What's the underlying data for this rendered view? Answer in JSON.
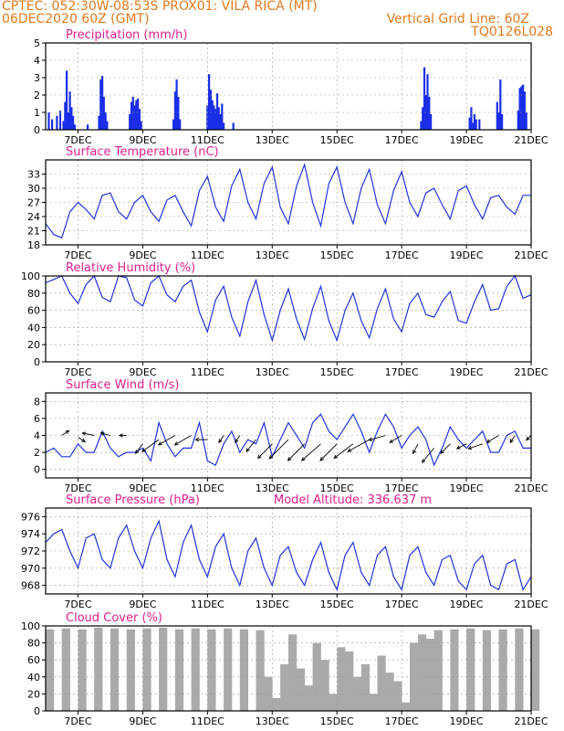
{
  "header": {
    "line1_left": "CPTEC:  052:30W-08:53S  PROX01: VILA RICA (MT)",
    "line2_left": "06DEC2020 60Z (GMT)",
    "line2_right": "Vertical Grid Line: 60Z",
    "line3_right": "TQ0126L028"
  },
  "colors": {
    "header": "#e07a1f",
    "title": "#e0208c",
    "line": "#2233dd",
    "bar": "#1a2ee8",
    "cloud": "#aaaaaa",
    "grid": "#999999"
  },
  "x_axis": {
    "unit": "day of December 2020 (from 06DEC 00Z)",
    "range": [
      6.0,
      21.0
    ],
    "ticks": [
      7,
      9,
      11,
      13,
      15,
      17,
      19,
      21
    ],
    "tick_labels": [
      "7DEC",
      "9DEC",
      "11DEC",
      "13DEC",
      "15DEC",
      "17DEC",
      "19DEC",
      "21DEC"
    ]
  },
  "chart_data": [
    {
      "type": "bar",
      "title": "Precipitation (mm/h)",
      "ylim": [
        0,
        5
      ],
      "yticks": [
        0,
        1,
        2,
        3,
        4,
        5
      ],
      "x": [
        6.1,
        6.2,
        6.35,
        6.45,
        6.55,
        6.6,
        6.65,
        6.7,
        6.75,
        6.8,
        6.85,
        6.9,
        7.3,
        7.65,
        7.7,
        7.75,
        7.8,
        7.85,
        7.9,
        8.6,
        8.65,
        8.7,
        8.75,
        8.8,
        8.85,
        8.9,
        8.95,
        9.95,
        10.0,
        10.05,
        10.1,
        10.15,
        11.0,
        11.05,
        11.1,
        11.15,
        11.2,
        11.25,
        11.3,
        11.35,
        11.4,
        11.45,
        11.5,
        11.8,
        17.6,
        17.65,
        17.7,
        17.75,
        17.8,
        17.85,
        17.9,
        19.1,
        19.15,
        19.2,
        19.25,
        19.3,
        19.4,
        19.95,
        20.0,
        20.05,
        20.1,
        20.6,
        20.65,
        20.7,
        20.75,
        20.8,
        20.85
      ],
      "values": [
        1.0,
        0.6,
        0.8,
        1.1,
        0.5,
        1.6,
        3.4,
        1.0,
        2.2,
        1.3,
        0.8,
        0.3,
        0.3,
        0.8,
        2.9,
        3.1,
        1.9,
        1.0,
        0.5,
        0.9,
        1.6,
        1.9,
        1.4,
        1.7,
        1.8,
        1.2,
        0.5,
        0.6,
        2.2,
        2.9,
        1.9,
        0.6,
        1.4,
        3.2,
        2.3,
        1.7,
        1.4,
        1.2,
        2.1,
        1.3,
        0.9,
        1.5,
        0.4,
        0.4,
        0.5,
        1.3,
        3.6,
        2.0,
        3.2,
        1.9,
        0.9,
        0.7,
        1.3,
        0.4,
        0.9,
        0.6,
        0.6,
        1.6,
        1.0,
        2.9,
        0.9,
        1.1,
        2.4,
        2.5,
        2.6,
        2.2,
        1.0
      ]
    },
    {
      "type": "line",
      "title": "Surface Temperature (nC)",
      "ylim": [
        18,
        36
      ],
      "yticks": [
        18,
        21,
        24,
        27,
        30,
        33
      ],
      "x": [
        6.0,
        6.25,
        6.5,
        6.75,
        7.0,
        7.25,
        7.5,
        7.75,
        8.0,
        8.25,
        8.5,
        8.75,
        9.0,
        9.25,
        9.5,
        9.75,
        10.0,
        10.25,
        10.5,
        10.75,
        11.0,
        11.25,
        11.5,
        11.75,
        12.0,
        12.25,
        12.5,
        12.75,
        13.0,
        13.25,
        13.5,
        13.75,
        14.0,
        14.25,
        14.5,
        14.75,
        15.0,
        15.25,
        15.5,
        15.75,
        16.0,
        16.25,
        16.5,
        16.75,
        17.0,
        17.25,
        17.5,
        17.75,
        18.0,
        18.25,
        18.5,
        18.75,
        19.0,
        19.25,
        19.5,
        19.75,
        20.0,
        20.25,
        20.5,
        20.75,
        21.0
      ],
      "values": [
        22.5,
        20.2,
        19.5,
        25.0,
        27.0,
        25.5,
        23.5,
        28.5,
        29.0,
        25.0,
        23.5,
        27.0,
        28.5,
        25.0,
        23.0,
        27.5,
        28.5,
        25.0,
        22.0,
        29.5,
        32.5,
        26.0,
        23.0,
        30.5,
        34.0,
        27.0,
        23.5,
        31.0,
        34.5,
        26.0,
        22.5,
        30.5,
        35.0,
        27.0,
        22.0,
        31.0,
        34.5,
        27.0,
        22.5,
        30.0,
        34.0,
        26.5,
        22.5,
        29.5,
        33.5,
        27.0,
        24.0,
        29.0,
        30.0,
        26.5,
        23.5,
        29.5,
        30.5,
        26.5,
        23.5,
        28.0,
        28.5,
        26.0,
        24.5,
        28.5,
        28.5
      ]
    },
    {
      "type": "line",
      "title": "Relative Humidity (%)",
      "ylim": [
        0,
        100
      ],
      "yticks": [
        0,
        20,
        40,
        60,
        80,
        100
      ],
      "x": [
        6.0,
        6.25,
        6.5,
        6.75,
        7.0,
        7.25,
        7.5,
        7.75,
        8.0,
        8.25,
        8.5,
        8.75,
        9.0,
        9.25,
        9.5,
        9.75,
        10.0,
        10.25,
        10.5,
        10.75,
        11.0,
        11.25,
        11.5,
        11.75,
        12.0,
        12.25,
        12.5,
        12.75,
        13.0,
        13.25,
        13.5,
        13.75,
        14.0,
        14.25,
        14.5,
        14.75,
        15.0,
        15.25,
        15.5,
        15.75,
        16.0,
        16.25,
        16.5,
        16.75,
        17.0,
        17.25,
        17.5,
        17.75,
        18.0,
        18.25,
        18.5,
        18.75,
        19.0,
        19.25,
        19.5,
        19.75,
        20.0,
        20.25,
        20.5,
        20.75,
        21.0
      ],
      "values": [
        92,
        96,
        100,
        80,
        68,
        90,
        100,
        75,
        70,
        100,
        98,
        72,
        65,
        92,
        100,
        78,
        70,
        88,
        95,
        58,
        35,
        72,
        88,
        52,
        30,
        70,
        95,
        55,
        25,
        60,
        85,
        50,
        26,
        62,
        88,
        48,
        25,
        60,
        80,
        48,
        28,
        62,
        85,
        50,
        35,
        68,
        80,
        55,
        52,
        70,
        82,
        48,
        45,
        70,
        90,
        60,
        62,
        88,
        100,
        74,
        78
      ]
    },
    {
      "type": "line",
      "title": "Surface Wind (m/s)",
      "ylim": [
        -1,
        9
      ],
      "yticks": [
        0,
        2,
        4,
        6,
        8
      ],
      "x": [
        6.0,
        6.25,
        6.5,
        6.75,
        7.0,
        7.25,
        7.5,
        7.75,
        8.0,
        8.25,
        8.5,
        8.75,
        9.0,
        9.25,
        9.5,
        9.75,
        10.0,
        10.25,
        10.5,
        10.75,
        11.0,
        11.25,
        11.5,
        11.75,
        12.0,
        12.25,
        12.5,
        12.75,
        13.0,
        13.25,
        13.5,
        13.75,
        14.0,
        14.25,
        14.5,
        14.75,
        15.0,
        15.25,
        15.5,
        15.75,
        16.0,
        16.25,
        16.5,
        16.75,
        17.0,
        17.25,
        17.5,
        17.75,
        18.0,
        18.25,
        18.5,
        18.75,
        19.0,
        19.25,
        19.5,
        19.75,
        20.0,
        20.25,
        20.5,
        20.75,
        21.0
      ],
      "values": [
        2.0,
        2.5,
        1.5,
        1.5,
        3.0,
        2.0,
        2.0,
        4.5,
        2.5,
        1.5,
        2.0,
        2.0,
        2.5,
        1.0,
        5.5,
        3.0,
        1.5,
        2.5,
        2.5,
        5.5,
        1.0,
        0.5,
        3.0,
        4.5,
        2.0,
        3.5,
        3.0,
        5.5,
        1.5,
        3.5,
        5.5,
        4.0,
        2.5,
        5.5,
        6.5,
        4.5,
        3.5,
        5.0,
        6.5,
        4.5,
        2.0,
        4.5,
        6.5,
        5.0,
        2.5,
        4.0,
        5.0,
        3.5,
        0.5,
        2.5,
        5.0,
        3.5,
        2.5,
        3.5,
        4.5,
        2.0,
        2.0,
        4.0,
        4.5,
        2.5,
        2.5
      ],
      "arrows": {
        "x": [
          6.5,
          7.0,
          7.5,
          8.0,
          8.5,
          9.0,
          9.5,
          10.0,
          10.5,
          11.0,
          11.5,
          12.0,
          12.5,
          13.0,
          13.5,
          14.0,
          14.5,
          15.0,
          15.5,
          16.0,
          16.5,
          17.0,
          17.5,
          18.0,
          18.5,
          19.0,
          19.5,
          20.0,
          20.5,
          21.0
        ],
        "y": [
          4.0,
          3.8,
          4.0,
          4.0,
          4.0,
          3.0,
          3.5,
          4.0,
          4.0,
          3.5,
          4.0,
          4.0,
          3.5,
          3.0,
          3.5,
          3.0,
          3.0,
          3.0,
          3.0,
          3.5,
          4.0,
          4.0,
          3.0,
          2.5,
          3.0,
          3.0,
          3.0,
          4.0,
          4.0,
          4.0
        ],
        "u": [
          3,
          3,
          -5,
          -4,
          -3,
          -3,
          -7,
          -7,
          -7,
          -5,
          -2,
          -2,
          -4,
          -6,
          -8,
          -7,
          -8,
          -7,
          -8,
          -9,
          -7,
          -5,
          -2,
          -5,
          -4,
          -4,
          -6,
          -5,
          -2,
          -2
        ],
        "v": [
          2,
          -2,
          1,
          1,
          0,
          -4,
          -5,
          -4,
          -4,
          0,
          -3,
          -3,
          -5,
          -6,
          -8,
          -7,
          -7,
          -7,
          -6,
          -5,
          -2,
          -3,
          -4,
          -6,
          -4,
          -2,
          -2,
          -3,
          -3,
          -2
        ]
      }
    },
    {
      "type": "line",
      "title": "Surface Pressure (hPa)",
      "annotation": "Model Altitude: 336.637 m",
      "ylim": [
        967,
        977
      ],
      "yticks": [
        968,
        970,
        972,
        974,
        976
      ],
      "x": [
        6.0,
        6.25,
        6.5,
        6.75,
        7.0,
        7.25,
        7.5,
        7.75,
        8.0,
        8.25,
        8.5,
        8.75,
        9.0,
        9.25,
        9.5,
        9.75,
        10.0,
        10.25,
        10.5,
        10.75,
        11.0,
        11.25,
        11.5,
        11.75,
        12.0,
        12.25,
        12.5,
        12.75,
        13.0,
        13.25,
        13.5,
        13.75,
        14.0,
        14.25,
        14.5,
        14.75,
        15.0,
        15.25,
        15.5,
        15.75,
        16.0,
        16.25,
        16.5,
        16.75,
        17.0,
        17.25,
        17.5,
        17.75,
        18.0,
        18.25,
        18.5,
        18.75,
        19.0,
        19.25,
        19.5,
        19.75,
        20.0,
        20.25,
        20.5,
        20.75,
        21.0
      ],
      "values": [
        973.0,
        974.0,
        974.5,
        972.0,
        970.0,
        973.5,
        974.0,
        971.0,
        970.0,
        973.5,
        975.0,
        972.0,
        970.0,
        973.5,
        975.5,
        971.0,
        969.0,
        973.0,
        975.0,
        971.0,
        969.0,
        972.5,
        974.0,
        970.0,
        968.0,
        972.0,
        973.5,
        970.0,
        968.0,
        971.5,
        972.5,
        969.5,
        968.0,
        971.0,
        973.0,
        969.5,
        967.5,
        971.5,
        973.0,
        969.5,
        968.0,
        971.5,
        972.5,
        969.0,
        967.5,
        971.5,
        972.5,
        969.5,
        968.0,
        971.0,
        971.5,
        968.5,
        967.5,
        970.5,
        971.5,
        968.0,
        967.5,
        970.5,
        971.0,
        967.5,
        969.0
      ]
    },
    {
      "type": "bar",
      "title": "Cloud Cover (%)",
      "ylim": [
        0,
        100
      ],
      "yticks": [
        0,
        20,
        40,
        60,
        80,
        100
      ],
      "x": [
        6.0,
        6.5,
        7.0,
        7.5,
        8.0,
        8.5,
        9.0,
        9.5,
        10.0,
        10.5,
        11.0,
        11.5,
        12.0,
        12.5,
        12.75,
        13.0,
        13.25,
        13.5,
        13.75,
        14.0,
        14.25,
        14.5,
        14.75,
        15.0,
        15.25,
        15.5,
        15.75,
        16.0,
        16.25,
        16.5,
        16.75,
        17.0,
        17.25,
        17.5,
        17.75,
        18.0,
        18.5,
        19.0,
        19.5,
        20.0,
        20.5,
        21.0
      ],
      "values": [
        96,
        97,
        96,
        98,
        97,
        96,
        97,
        98,
        96,
        97,
        96,
        97,
        96,
        95,
        40,
        15,
        55,
        90,
        50,
        30,
        80,
        60,
        20,
        75,
        70,
        40,
        55,
        20,
        65,
        45,
        35,
        10,
        80,
        90,
        85,
        95,
        96,
        97,
        95,
        96,
        97,
        96
      ]
    }
  ]
}
